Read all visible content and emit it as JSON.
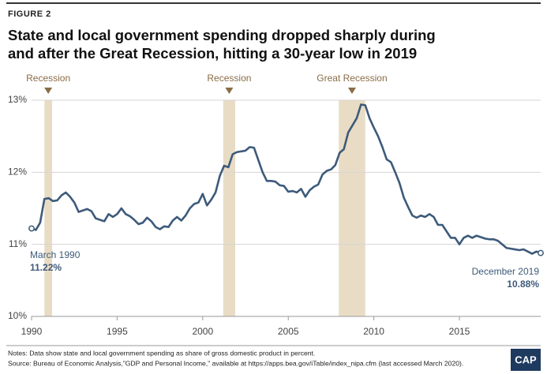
{
  "chart_data": {
    "type": "line",
    "figure_label": "FIGURE 2",
    "title": [
      "State and local government spending dropped sharply during",
      "and after the Great Recession, hitting a 30-year low in 2019"
    ],
    "x": [
      1990,
      1990.25,
      1990.5,
      1990.75,
      1991,
      1991.25,
      1991.5,
      1991.75,
      1992,
      1992.25,
      1992.5,
      1992.75,
      1993,
      1993.25,
      1993.5,
      1993.75,
      1994,
      1994.25,
      1994.5,
      1994.75,
      1995,
      1995.25,
      1995.5,
      1995.75,
      1996,
      1996.25,
      1996.5,
      1996.75,
      1997,
      1997.25,
      1997.5,
      1997.75,
      1998,
      1998.25,
      1998.5,
      1998.75,
      1999,
      1999.25,
      1999.5,
      1999.75,
      2000,
      2000.25,
      2000.5,
      2000.75,
      2001,
      2001.25,
      2001.5,
      2001.75,
      2002,
      2002.25,
      2002.5,
      2002.75,
      2003,
      2003.25,
      2003.5,
      2003.75,
      2004,
      2004.25,
      2004.5,
      2004.75,
      2005,
      2005.25,
      2005.5,
      2005.75,
      2006,
      2006.25,
      2006.5,
      2006.75,
      2007,
      2007.25,
      2007.5,
      2007.75,
      2008,
      2008.25,
      2008.5,
      2008.75,
      2009,
      2009.25,
      2009.5,
      2009.75,
      2010,
      2010.25,
      2010.5,
      2010.75,
      2011,
      2011.25,
      2011.5,
      2011.75,
      2012,
      2012.25,
      2012.5,
      2012.75,
      2013,
      2013.25,
      2013.5,
      2013.75,
      2014,
      2014.25,
      2014.5,
      2014.75,
      2015,
      2015.25,
      2015.5,
      2015.75,
      2016,
      2016.25,
      2016.5,
      2016.75,
      2017,
      2017.25,
      2017.5,
      2017.75,
      2018,
      2018.25,
      2018.5,
      2018.75,
      2019,
      2019.25,
      2019.5,
      2019.75
    ],
    "values": [
      11.22,
      11.2,
      11.3,
      11.63,
      11.64,
      11.6,
      11.61,
      11.68,
      11.72,
      11.66,
      11.58,
      11.45,
      11.47,
      11.49,
      11.46,
      11.36,
      11.34,
      11.32,
      11.42,
      11.38,
      11.42,
      11.5,
      11.42,
      11.39,
      11.34,
      11.28,
      11.3,
      11.37,
      11.32,
      11.24,
      11.21,
      11.25,
      11.24,
      11.33,
      11.38,
      11.33,
      11.4,
      11.5,
      11.56,
      11.58,
      11.7,
      11.54,
      11.62,
      11.72,
      11.95,
      12.09,
      12.07,
      12.25,
      12.28,
      12.29,
      12.3,
      12.35,
      12.34,
      12.17,
      12.0,
      11.88,
      11.88,
      11.87,
      11.82,
      11.81,
      11.73,
      11.74,
      11.72,
      11.77,
      11.66,
      11.75,
      11.8,
      11.83,
      11.97,
      12.02,
      12.04,
      12.1,
      12.27,
      12.32,
      12.55,
      12.65,
      12.75,
      12.94,
      12.93,
      12.75,
      12.62,
      12.5,
      12.35,
      12.18,
      12.14,
      12.0,
      11.85,
      11.65,
      11.52,
      11.4,
      11.37,
      11.4,
      11.38,
      11.42,
      11.38,
      11.27,
      11.27,
      11.18,
      11.09,
      11.09,
      11.0,
      11.09,
      11.12,
      11.09,
      11.12,
      11.1,
      11.08,
      11.07,
      11.07,
      11.05,
      11.0,
      10.95,
      10.94,
      10.93,
      10.92,
      10.93,
      10.9,
      10.87,
      10.9,
      10.88
    ],
    "color": "#3d5a7a",
    "xlim": [
      1990,
      2019.75
    ],
    "ylim": [
      10,
      13
    ],
    "xticks": [
      1990,
      1995,
      2000,
      2005,
      2010,
      2015
    ],
    "yticks": [
      {
        "value": 10,
        "label": "10%"
      },
      {
        "value": 11,
        "label": "11%"
      },
      {
        "value": 12,
        "label": "12%"
      },
      {
        "value": 13,
        "label": "13%"
      }
    ],
    "grid": true,
    "recessions": [
      {
        "label": "Recession",
        "range": [
          1990.75,
          1991.2
        ]
      },
      {
        "label": "Recession",
        "range": [
          2001.2,
          2001.9
        ]
      },
      {
        "label": "Great Recession",
        "range": [
          2007.95,
          2009.5
        ]
      }
    ],
    "first_label": {
      "date": "March 1990",
      "value_label": "11.22%"
    },
    "last_label": {
      "date": "December 2019",
      "value_label": "10.88%"
    },
    "notes": [
      "Notes: Data show state and local government spending as share of gross domestic product in percent.",
      "Source: Bureau of Economic Analysis,\"GDP and Personal Income,\" available at https://apps.bea.gov/iTable/index_nipa.cfm (last accessed March 2020)."
    ],
    "logo": "CAP"
  }
}
